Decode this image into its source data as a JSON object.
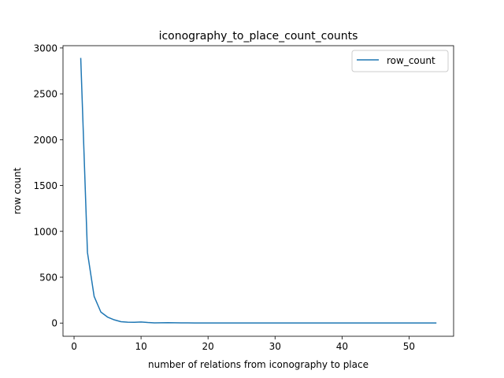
{
  "chart_data": {
    "type": "line",
    "title": "iconography_to_place_count_counts",
    "xlabel": "number of relations from iconography to place",
    "ylabel": "row count",
    "xlim": [
      -1.65,
      56.65
    ],
    "ylim": [
      -144,
      3025
    ],
    "xticks": [
      0,
      10,
      20,
      30,
      40,
      50
    ],
    "yticks": [
      0,
      500,
      1000,
      1500,
      2000,
      2500,
      3000
    ],
    "grid": false,
    "legend_position": "upper right",
    "series": [
      {
        "name": "row_count",
        "color": "#1f77b4",
        "x": [
          1,
          2,
          3,
          4,
          5,
          6,
          7,
          8,
          9,
          10,
          11,
          12,
          13,
          14,
          15,
          16,
          17,
          18,
          19,
          20,
          22,
          24,
          26,
          28,
          30,
          32,
          34,
          36,
          38,
          40,
          42,
          44,
          46,
          48,
          50,
          52,
          54
        ],
        "values": [
          2885,
          770,
          290,
          120,
          65,
          35,
          15,
          10,
          8,
          12,
          6,
          2,
          3,
          4,
          3,
          2,
          2,
          1,
          1,
          1,
          1,
          1,
          1,
          1,
          1,
          1,
          1,
          1,
          1,
          1,
          1,
          1,
          1,
          1,
          1,
          1,
          1
        ]
      }
    ]
  }
}
